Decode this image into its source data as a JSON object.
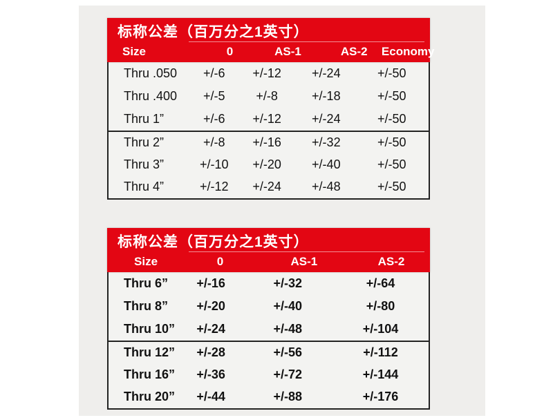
{
  "colors": {
    "accent_red": "#e30613",
    "border_dark": "#222222",
    "table_body_bg": "#f3f3f1",
    "scan_bg": "#efeeec",
    "header_text": "#ffffff",
    "body_text": "#111111"
  },
  "tables": [
    {
      "title": "标称公差（百万分之1英寸）",
      "columns": [
        "Size",
        "0",
        "AS-1",
        "AS-2",
        "Economy"
      ],
      "rows": [
        [
          "Thru .050",
          "+/-6",
          "+/-12",
          "+/-24",
          "+/-50"
        ],
        [
          "Thru .400",
          "+/-5",
          "+/-8",
          "+/-18",
          "+/-50"
        ],
        [
          "Thru 1”",
          "+/-6",
          "+/-12",
          "+/-24",
          "+/-50"
        ],
        [
          "Thru 2”",
          "+/-8",
          "+/-16",
          "+/-32",
          "+/-50"
        ],
        [
          "Thru 3”",
          "+/-10",
          "+/-20",
          "+/-40",
          "+/-50"
        ],
        [
          "Thru 4”",
          "+/-12",
          "+/-24",
          "+/-48",
          "+/-50"
        ]
      ]
    },
    {
      "title": "标称公差（百万分之1英寸）",
      "columns": [
        "Size",
        "0",
        "AS-1",
        "AS-2"
      ],
      "rows": [
        [
          "Thru 6”",
          "+/-16",
          "+/-32",
          "+/-64"
        ],
        [
          "Thru 8”",
          "+/-20",
          "+/-40",
          "+/-80"
        ],
        [
          "Thru 10”",
          "+/-24",
          "+/-48",
          "+/-104"
        ],
        [
          "Thru 12”",
          "+/-28",
          "+/-56",
          "+/-112"
        ],
        [
          "Thru 16”",
          "+/-36",
          "+/-72",
          "+/-144"
        ],
        [
          "Thru 20”",
          "+/-44",
          "+/-88",
          "+/-176"
        ]
      ]
    }
  ]
}
